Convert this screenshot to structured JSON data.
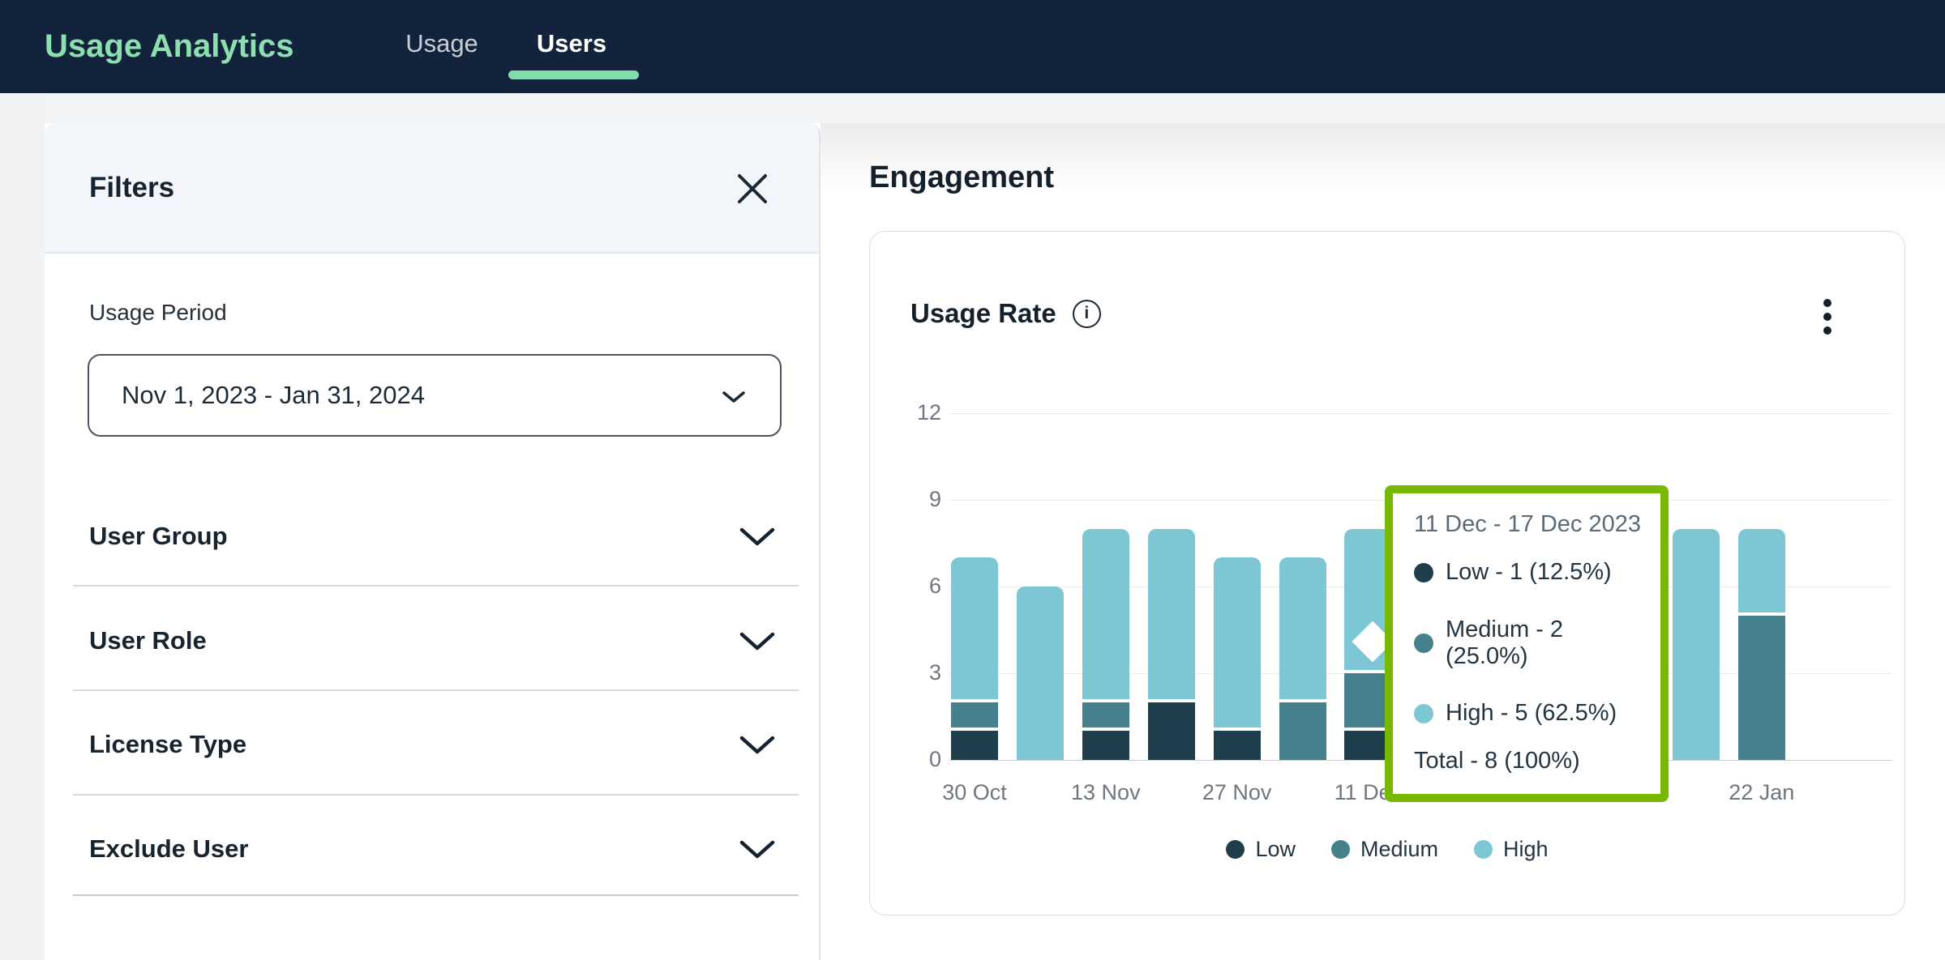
{
  "navbar": {
    "title": "Usage Analytics",
    "accent_color": "#8ce0af",
    "underline_color": "#7fdeaa",
    "tabs": [
      {
        "label": "Usage",
        "active": false
      },
      {
        "label": "Users",
        "active": true
      }
    ]
  },
  "filters": {
    "title": "Filters",
    "usage_period_label": "Usage Period",
    "usage_period_value": "Nov 1, 2023 - Jan 31, 2024",
    "sections": [
      {
        "label": "User Group"
      },
      {
        "label": "User Role"
      },
      {
        "label": "License Type"
      },
      {
        "label": "Exclude User"
      }
    ]
  },
  "main": {
    "heading": "Engagement",
    "card_title": "Usage Rate"
  },
  "chart_data": {
    "type": "bar",
    "stacked": true,
    "title": "Usage Rate",
    "xlabel": "",
    "ylabel": "",
    "ylim": [
      0,
      12
    ],
    "yticks": [
      0,
      3,
      6,
      9,
      12
    ],
    "grid": true,
    "legend_position": "bottom-center",
    "series_names": [
      "Low",
      "Medium",
      "High"
    ],
    "colors": {
      "Low": "#1d3e4a",
      "Medium": "#47808d",
      "High": "#7cc7d3"
    },
    "bars": [
      {
        "x_label": "30 Oct",
        "visible": true,
        "values": {
          "Low": 1,
          "Medium": 1,
          "High": 5
        }
      },
      {
        "x_label": "",
        "visible": true,
        "values": {
          "Low": 0,
          "Medium": 0,
          "High": 6
        }
      },
      {
        "x_label": "13 Nov",
        "visible": true,
        "values": {
          "Low": 1,
          "Medium": 1,
          "High": 6
        }
      },
      {
        "x_label": "",
        "visible": true,
        "values": {
          "Low": 2,
          "Medium": 0,
          "High": 6
        }
      },
      {
        "x_label": "27 Nov",
        "visible": true,
        "values": {
          "Low": 1,
          "Medium": 0,
          "High": 6
        }
      },
      {
        "x_label": "",
        "visible": true,
        "values": {
          "Low": 0,
          "Medium": 2,
          "High": 5
        }
      },
      {
        "x_label": "11 Dec",
        "visible": true,
        "values": {
          "Low": 1,
          "Medium": 2,
          "High": 5
        }
      },
      {
        "x_label": "",
        "visible": false
      },
      {
        "x_label": "",
        "visible": false
      },
      {
        "x_label": "",
        "visible": false
      },
      {
        "x_label": "",
        "visible": false
      },
      {
        "x_label": "",
        "visible": true,
        "values": {
          "Low": 0,
          "Medium": 0,
          "High": 8
        }
      },
      {
        "x_label": "22 Jan",
        "visible": true,
        "values": {
          "Low": 0,
          "Medium": 5,
          "High": 3
        }
      }
    ],
    "bars_hidden_behind_tooltip": [
      7,
      8,
      9,
      10
    ]
  },
  "tooltip": {
    "border_color": "#76b900",
    "header": "11 Dec - 17 Dec 2023",
    "rows": [
      {
        "series": "Low",
        "text": "Low - 1 (12.5%)",
        "color": "#1d3e4a"
      },
      {
        "series": "Medium",
        "text": "Medium - 2 (25.0%)",
        "color": "#47808d"
      },
      {
        "series": "High",
        "text": "High - 5 (62.5%)",
        "color": "#7cc7d3"
      }
    ],
    "total": "Total - 8 (100%)"
  },
  "legend": [
    {
      "label": "Low",
      "color": "#1d3e4a"
    },
    {
      "label": "Medium",
      "color": "#47808d"
    },
    {
      "label": "High",
      "color": "#7cc7d3"
    }
  ]
}
